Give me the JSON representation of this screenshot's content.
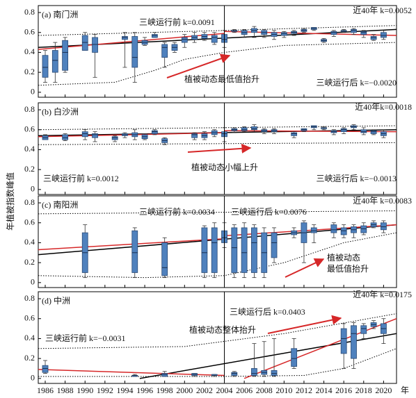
{
  "ylabel": "年植被指数峰值",
  "chart_data": [
    {
      "type": "box",
      "title": "(a) 南门洲",
      "annotations": [
        "三峡运行前 k=0.0091",
        "近40年 k=0.0052",
        "三峡运行后 k=−0.0020",
        "植被动态最低值抬升"
      ],
      "xlim": [
        1985.3,
        2021.3
      ],
      "ylim": [
        -0.05,
        0.87
      ],
      "yticks": [
        0,
        0.2,
        0.4,
        0.6,
        0.8
      ],
      "divider": 2004,
      "years": [
        1986,
        1987,
        1988,
        1990,
        1991,
        1994,
        1995,
        1996,
        1997,
        1998,
        1999,
        2000,
        2001,
        2002,
        2003,
        2004,
        2005,
        2006,
        2007,
        2008,
        2009,
        2010,
        2011,
        2012,
        2013,
        2014,
        2015,
        2016,
        2017,
        2018,
        2019,
        2020
      ],
      "low": [
        0.1,
        0.1,
        0.2,
        0.42,
        0.15,
        0.25,
        0.1,
        0.47,
        0.55,
        0.25,
        0.4,
        0.45,
        0.5,
        0.52,
        0.48,
        0.45,
        0.6,
        0.55,
        0.55,
        0.55,
        0.53,
        0.55,
        0.57,
        0.6,
        0.62,
        0.5,
        0.56,
        0.6,
        0.58,
        0.55,
        0.52,
        0.53
      ],
      "q1": [
        0.15,
        0.2,
        0.22,
        0.42,
        0.4,
        0.53,
        0.25,
        0.48,
        0.55,
        0.35,
        0.42,
        0.5,
        0.53,
        0.54,
        0.5,
        0.5,
        0.61,
        0.58,
        0.6,
        0.58,
        0.56,
        0.57,
        0.59,
        0.61,
        0.63,
        0.51,
        0.58,
        0.61,
        0.6,
        0.58,
        0.53,
        0.55
      ],
      "median": [
        0.25,
        0.32,
        0.4,
        0.5,
        0.48,
        0.55,
        0.35,
        0.5,
        0.57,
        0.45,
        0.45,
        0.53,
        0.55,
        0.56,
        0.55,
        0.53,
        0.62,
        0.6,
        0.62,
        0.6,
        0.58,
        0.59,
        0.6,
        0.62,
        0.64,
        0.52,
        0.6,
        0.62,
        0.62,
        0.6,
        0.55,
        0.57
      ],
      "q3": [
        0.37,
        0.42,
        0.52,
        0.57,
        0.55,
        0.56,
        0.56,
        0.52,
        0.58,
        0.48,
        0.48,
        0.55,
        0.57,
        0.58,
        0.57,
        0.58,
        0.62,
        0.62,
        0.64,
        0.62,
        0.6,
        0.6,
        0.61,
        0.63,
        0.65,
        0.53,
        0.61,
        0.62,
        0.63,
        0.61,
        0.56,
        0.6
      ],
      "high": [
        0.42,
        0.5,
        0.55,
        0.6,
        0.58,
        0.6,
        0.6,
        0.55,
        0.6,
        0.5,
        0.5,
        0.58,
        0.6,
        0.6,
        0.6,
        0.62,
        0.63,
        0.63,
        0.66,
        0.63,
        0.62,
        0.61,
        0.62,
        0.64,
        0.65,
        0.54,
        0.62,
        0.63,
        0.64,
        0.62,
        0.58,
        0.62
      ],
      "trend_lines": [
        {
          "color": "#000000",
          "x": [
            1985.3,
            2021.3
          ],
          "y": [
            0.45,
            0.63
          ]
        },
        {
          "color": "#d62728",
          "x": [
            1985.3,
            2004
          ],
          "y": [
            0.43,
            0.59
          ]
        },
        {
          "color": "#d62728",
          "x": [
            2004,
            2021.3
          ],
          "y": [
            0.61,
            0.57
          ]
        }
      ],
      "envelope": [
        {
          "x": [
            1985.3,
            2004,
            2021.3
          ],
          "y": [
            0.57,
            0.62,
            0.67
          ]
        },
        {
          "x": [
            1985.3,
            1993,
            1997,
            2000,
            2004,
            2010,
            2021.3
          ],
          "y": [
            0.07,
            0.1,
            0.22,
            0.33,
            0.4,
            0.47,
            0.5
          ]
        }
      ]
    },
    {
      "type": "box",
      "title": "(b) 白沙洲",
      "annotations": [
        "近40年k=0.0018",
        "植被动态小幅上升",
        "三峡运行前 k=0.0012",
        "三峡运行后 k=−0.0013"
      ],
      "xlim": [
        1985.3,
        2021.3
      ],
      "ylim": [
        -0.05,
        0.87
      ],
      "yticks": [
        0,
        0.2,
        0.4,
        0.6,
        0.8
      ],
      "divider": 2004,
      "years": [
        1986,
        1988,
        1990,
        1991,
        1993,
        1994,
        1995,
        1996,
        1997,
        1998,
        2001,
        2002,
        2003,
        2004,
        2005,
        2006,
        2007,
        2008,
        2009,
        2011,
        2012,
        2013,
        2014,
        2015,
        2016,
        2017,
        2018,
        2019,
        2020
      ],
      "low": [
        0.5,
        0.49,
        0.5,
        0.48,
        0.48,
        0.52,
        0.5,
        0.5,
        0.55,
        0.45,
        0.5,
        0.5,
        0.53,
        0.48,
        0.57,
        0.58,
        0.58,
        0.56,
        0.56,
        0.52,
        0.58,
        0.6,
        0.6,
        0.55,
        0.56,
        0.6,
        0.55,
        0.55,
        0.52
      ],
      "q1": [
        0.5,
        0.5,
        0.53,
        0.52,
        0.5,
        0.54,
        0.53,
        0.51,
        0.56,
        0.47,
        0.52,
        0.52,
        0.55,
        0.53,
        0.59,
        0.59,
        0.6,
        0.58,
        0.58,
        0.54,
        0.59,
        0.62,
        0.61,
        0.57,
        0.58,
        0.62,
        0.57,
        0.56,
        0.54
      ],
      "median": [
        0.52,
        0.52,
        0.56,
        0.55,
        0.52,
        0.55,
        0.55,
        0.53,
        0.58,
        0.49,
        0.55,
        0.54,
        0.57,
        0.56,
        0.6,
        0.6,
        0.61,
        0.59,
        0.59,
        0.56,
        0.6,
        0.63,
        0.62,
        0.58,
        0.6,
        0.63,
        0.58,
        0.58,
        0.56
      ],
      "q3": [
        0.54,
        0.55,
        0.58,
        0.56,
        0.53,
        0.56,
        0.57,
        0.55,
        0.59,
        0.51,
        0.56,
        0.56,
        0.59,
        0.58,
        0.61,
        0.62,
        0.63,
        0.6,
        0.6,
        0.57,
        0.61,
        0.64,
        0.62,
        0.59,
        0.61,
        0.64,
        0.6,
        0.59,
        0.58
      ],
      "high": [
        0.55,
        0.56,
        0.6,
        0.58,
        0.54,
        0.57,
        0.6,
        0.56,
        0.6,
        0.52,
        0.57,
        0.58,
        0.6,
        0.62,
        0.62,
        0.63,
        0.65,
        0.61,
        0.61,
        0.58,
        0.61,
        0.64,
        0.63,
        0.6,
        0.62,
        0.65,
        0.62,
        0.6,
        0.6
      ],
      "trend_lines": [
        {
          "color": "#000000",
          "x": [
            1985.3,
            2021.3
          ],
          "y": [
            0.54,
            0.6
          ]
        },
        {
          "color": "#d62728",
          "x": [
            1985.3,
            2004
          ],
          "y": [
            0.53,
            0.57
          ]
        },
        {
          "color": "#d62728",
          "x": [
            2004,
            2021.3
          ],
          "y": [
            0.59,
            0.58
          ]
        }
      ],
      "envelope": [
        {
          "x": [
            1985.3,
            2021.3
          ],
          "y": [
            0.6,
            0.64
          ]
        },
        {
          "x": [
            1985.3,
            2021.3
          ],
          "y": [
            0.45,
            0.47
          ]
        }
      ]
    },
    {
      "type": "box",
      "title": "(c) 南阳洲",
      "annotations": [
        "三峡运行前 k=0.0034",
        "三峡运行后 k=0.0076",
        "近40年 k=0.0083",
        "植被动态",
        "最低值抬升"
      ],
      "xlim": [
        1985.3,
        2021.3
      ],
      "ylim": [
        -0.05,
        0.87
      ],
      "yticks": [
        0,
        0.2,
        0.4,
        0.6,
        0.8
      ],
      "divider": 2004,
      "years": [
        1990,
        1995,
        1998,
        2002,
        2003,
        2004,
        2005,
        2006,
        2007,
        2008,
        2009,
        2011,
        2012,
        2013,
        2015,
        2016,
        2017,
        2018,
        2019,
        2020
      ],
      "low": [
        0.05,
        0.05,
        0.05,
        0.05,
        0.05,
        0.35,
        0.05,
        0.05,
        0.05,
        0.05,
        0.2,
        0.45,
        0.2,
        0.4,
        0.45,
        0.45,
        0.45,
        0.48,
        0.55,
        0.5
      ],
      "q1": [
        0.1,
        0.1,
        0.07,
        0.1,
        0.1,
        0.4,
        0.1,
        0.1,
        0.1,
        0.1,
        0.25,
        0.48,
        0.4,
        0.5,
        0.5,
        0.48,
        0.5,
        0.5,
        0.56,
        0.53
      ],
      "median": [
        0.3,
        0.3,
        0.15,
        0.3,
        0.4,
        0.45,
        0.35,
        0.3,
        0.4,
        0.3,
        0.4,
        0.5,
        0.5,
        0.52,
        0.53,
        0.52,
        0.53,
        0.54,
        0.58,
        0.56
      ],
      "q3": [
        0.5,
        0.52,
        0.4,
        0.55,
        0.55,
        0.52,
        0.55,
        0.55,
        0.55,
        0.5,
        0.5,
        0.52,
        0.6,
        0.55,
        0.58,
        0.55,
        0.56,
        0.57,
        0.6,
        0.6
      ],
      "high": [
        0.58,
        0.55,
        0.45,
        0.57,
        0.6,
        0.6,
        0.58,
        0.6,
        0.58,
        0.55,
        0.55,
        0.55,
        0.62,
        0.58,
        0.6,
        0.58,
        0.58,
        0.6,
        0.62,
        0.62
      ],
      "trend_lines": [
        {
          "color": "#000000",
          "x": [
            1985.3,
            2021.3
          ],
          "y": [
            0.28,
            0.58
          ]
        },
        {
          "color": "#d62728",
          "x": [
            1985.3,
            2004
          ],
          "y": [
            0.33,
            0.44
          ]
        },
        {
          "color": "#d62728",
          "x": [
            2004,
            2021.3
          ],
          "y": [
            0.47,
            0.58
          ]
        }
      ],
      "envelope": [
        {
          "x": [
            1985.3,
            2021.3
          ],
          "y": [
            0.69,
            0.72
          ]
        },
        {
          "x": [
            1985.3,
            1996,
            2004,
            2010,
            2016,
            2021.3
          ],
          "y": [
            0.07,
            0.05,
            0.07,
            0.2,
            0.4,
            0.5
          ]
        }
      ]
    },
    {
      "type": "box",
      "title": "(d) 中洲",
      "annotations": [
        "三峡运行后 k=0.0403",
        "近40年 k=0.0175",
        "植被动态整体抬升",
        "三峡运行前 k=−0.0031"
      ],
      "xlim": [
        1985.3,
        2021.3
      ],
      "ylim": [
        -0.05,
        0.87
      ],
      "yticks": [
        0,
        0.2,
        0.4,
        0.6,
        0.8
      ],
      "divider": 2004,
      "xticks": [
        1986,
        1988,
        1990,
        1992,
        1994,
        1996,
        1998,
        2000,
        2002,
        2004,
        2006,
        2008,
        2010,
        2012,
        2014,
        2016,
        2018,
        2020
      ],
      "xlabel": "年",
      "years": [
        1986,
        1995,
        1998,
        2001,
        2003,
        2005,
        2007,
        2008,
        2009,
        2011,
        2016,
        2017,
        2018,
        2019,
        2020
      ],
      "low": [
        0.05,
        0.02,
        0.02,
        0.02,
        0.02,
        0.02,
        0.02,
        0.02,
        0.02,
        0.1,
        0.1,
        0.1,
        0.4,
        0.5,
        0.35
      ],
      "q1": [
        0.06,
        0.02,
        0.02,
        0.03,
        0.03,
        0.03,
        0.03,
        0.04,
        0.03,
        0.12,
        0.25,
        0.2,
        0.45,
        0.52,
        0.45
      ],
      "median": [
        0.1,
        0.03,
        0.04,
        0.04,
        0.03,
        0.05,
        0.05,
        0.06,
        0.05,
        0.2,
        0.4,
        0.45,
        0.5,
        0.54,
        0.5
      ],
      "q3": [
        0.13,
        0.03,
        0.05,
        0.05,
        0.04,
        0.06,
        0.1,
        0.08,
        0.08,
        0.3,
        0.5,
        0.53,
        0.53,
        0.56,
        0.55
      ],
      "high": [
        0.18,
        0.04,
        0.07,
        0.05,
        0.04,
        0.07,
        0.35,
        0.37,
        0.4,
        0.4,
        0.55,
        0.56,
        0.55,
        0.58,
        0.6
      ],
      "trend_lines": [
        {
          "color": "#000000",
          "x": [
            1995.5,
            2021.3
          ],
          "y": [
            0,
            0.45
          ]
        },
        {
          "color": "#d62728",
          "x": [
            1985.3,
            2004
          ],
          "y": [
            0.09,
            0.03
          ]
        },
        {
          "color": "#d62728",
          "x": [
            2006,
            2021.3
          ],
          "y": [
            0,
            0.6
          ]
        }
      ],
      "envelope": [
        {
          "x": [
            1985.3,
            2000,
            2010,
            2021.3
          ],
          "y": [
            0.3,
            0.32,
            0.45,
            0.65
          ]
        },
        {
          "x": [
            1985.3,
            2004,
            2012,
            2016,
            2021.3
          ],
          "y": [
            0.02,
            0.02,
            0.03,
            0.1,
            0.3
          ]
        }
      ]
    }
  ]
}
